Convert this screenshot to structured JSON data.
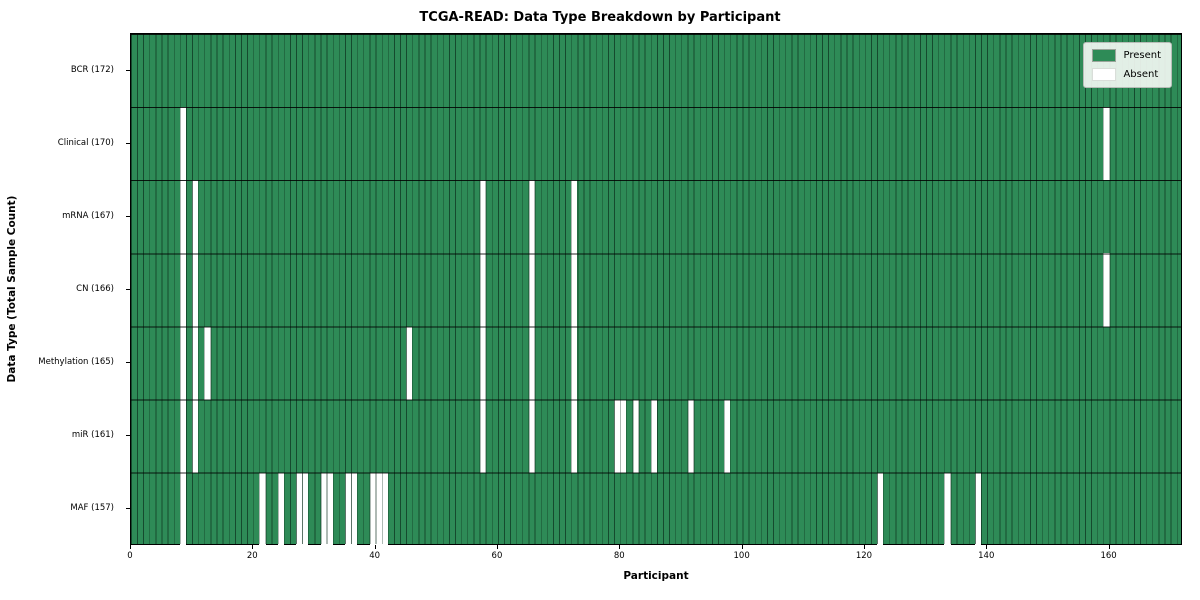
{
  "chart_data": {
    "type": "heatmap",
    "title": "TCGA-READ: Data Type Breakdown by Participant",
    "xlabel": "Participant",
    "ylabel": "Data Type (Total Sample Count)",
    "xlim": [
      0,
      172
    ],
    "n_participants": 172,
    "x_ticks": [
      0,
      20,
      40,
      60,
      80,
      100,
      120,
      140,
      160
    ],
    "grid": true,
    "legend_position": "upper right",
    "legend": [
      {
        "label": "Present",
        "color": "#2e8b57"
      },
      {
        "label": "Absent",
        "color": "#ffffff"
      }
    ],
    "colors": {
      "present": "#2e8b57",
      "absent": "#ffffff",
      "cell_edge": "#0a2818",
      "legend_bg": "#f2f7f2"
    },
    "rows": [
      {
        "label": "BCR (172)",
        "data_type": "BCR",
        "total_sample_count": 172,
        "absent_participants": []
      },
      {
        "label": "Clinical (170)",
        "data_type": "Clinical",
        "total_sample_count": 170,
        "absent_participants": [
          8,
          159
        ]
      },
      {
        "label": "mRNA (167)",
        "data_type": "mRNA",
        "total_sample_count": 167,
        "absent_participants": [
          8,
          10,
          57,
          65,
          72
        ]
      },
      {
        "label": "CN (166)",
        "data_type": "CN",
        "total_sample_count": 166,
        "absent_participants": [
          8,
          10,
          57,
          65,
          72,
          159
        ]
      },
      {
        "label": "Methylation (165)",
        "data_type": "Methylation",
        "total_sample_count": 165,
        "absent_participants": [
          8,
          10,
          12,
          45,
          57,
          65,
          72
        ]
      },
      {
        "label": "miR (161)",
        "data_type": "miR",
        "total_sample_count": 161,
        "absent_participants": [
          8,
          10,
          57,
          65,
          72,
          79,
          80,
          82,
          85,
          91,
          97
        ]
      },
      {
        "label": "MAF (157)",
        "data_type": "MAF",
        "total_sample_count": 157,
        "absent_participants": [
          8,
          21,
          24,
          27,
          28,
          31,
          32,
          35,
          36,
          39,
          40,
          41,
          122,
          133,
          138
        ]
      }
    ]
  }
}
